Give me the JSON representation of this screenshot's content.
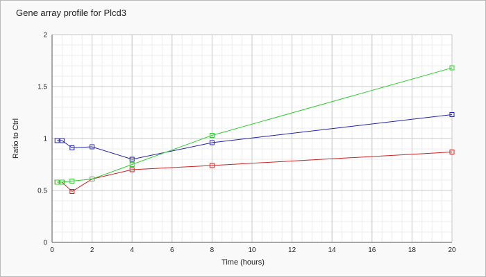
{
  "chart_data": {
    "type": "line",
    "title": "Gene array profile for Plcd3",
    "xlabel": "Time (hours)",
    "ylabel": "Ratio to Ctrl",
    "xlim": [
      0,
      20
    ],
    "ylim": [
      0,
      2
    ],
    "xticks": [
      0,
      2,
      4,
      6,
      8,
      10,
      12,
      14,
      16,
      18,
      20
    ],
    "yticks": [
      0,
      0.5,
      1,
      1.5,
      2
    ],
    "ytick_labels": [
      "0",
      "0.5",
      "1",
      "1.5",
      "2"
    ],
    "grid": true,
    "marker": "square",
    "series": [
      {
        "color": "#cc2222",
        "x": [
          0.25,
          0.5,
          1,
          2,
          4,
          8,
          20
        ],
        "y": [
          0.58,
          0.58,
          0.49,
          0.61,
          0.7,
          0.74,
          0.87
        ]
      },
      {
        "color": "#2222aa",
        "x": [
          0.25,
          0.5,
          1,
          2,
          4,
          8,
          20
        ],
        "y": [
          0.98,
          0.98,
          0.91,
          0.92,
          0.8,
          0.96,
          1.23
        ]
      },
      {
        "color": "#33cc33",
        "x": [
          0.25,
          0.5,
          1,
          2,
          4,
          8,
          20
        ],
        "y": [
          0.58,
          0.58,
          0.59,
          0.61,
          0.75,
          1.03,
          1.68
        ]
      }
    ]
  }
}
